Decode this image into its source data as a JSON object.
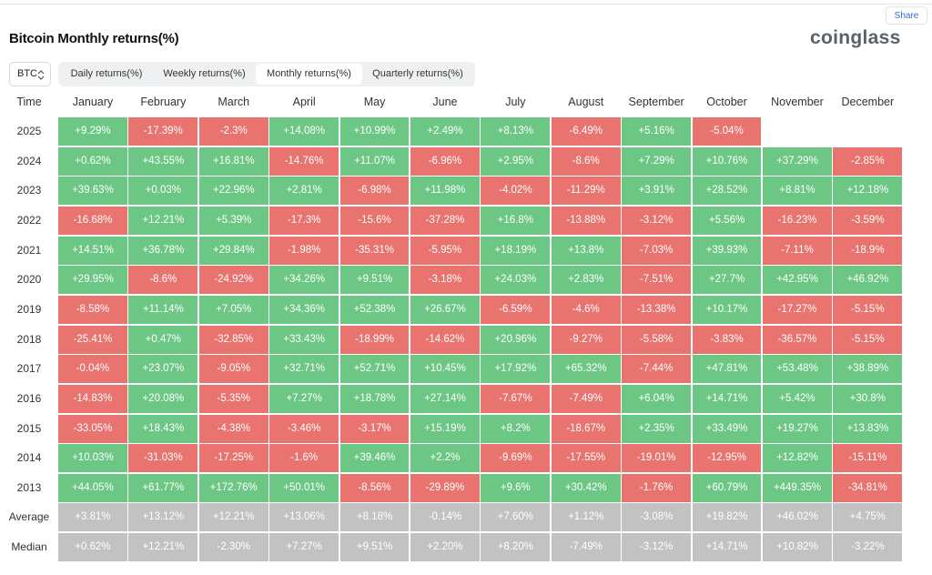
{
  "header": {
    "title": "Bitcoin Monthly returns(%)",
    "logo": "coinglass",
    "share": "Share"
  },
  "controls": {
    "asset": "BTC",
    "tabs": [
      "Daily returns(%)",
      "Weekly returns(%)",
      "Monthly returns(%)",
      "Quarterly returns(%)"
    ],
    "active_tab": 2
  },
  "colors": {
    "positive": "#6cc785",
    "negative": "#e8736f",
    "summary": "#c2c2c2"
  },
  "table": {
    "columns": [
      "Time",
      "January",
      "February",
      "March",
      "April",
      "May",
      "June",
      "July",
      "August",
      "September",
      "October",
      "November",
      "December"
    ],
    "rows": [
      {
        "label": "2025",
        "cells": [
          "+9.29%",
          "-17.39%",
          "-2.3%",
          "+14.08%",
          "+10.99%",
          "+2.49%",
          "+8.13%",
          "-6.49%",
          "+5.16%",
          "-5.04%"
        ]
      },
      {
        "label": "2024",
        "cells": [
          "+0.62%",
          "+43.55%",
          "+16.81%",
          "-14.76%",
          "+11.07%",
          "-6.96%",
          "+2.95%",
          "-8.6%",
          "+7.29%",
          "+10.76%",
          "+37.29%",
          "-2.85%"
        ]
      },
      {
        "label": "2023",
        "cells": [
          "+39.63%",
          "+0.03%",
          "+22.96%",
          "+2.81%",
          "-6.98%",
          "+11.98%",
          "-4.02%",
          "-11.29%",
          "+3.91%",
          "+28.52%",
          "+8.81%",
          "+12.18%"
        ]
      },
      {
        "label": "2022",
        "cells": [
          "-16.68%",
          "+12.21%",
          "+5.39%",
          "-17.3%",
          "-15.6%",
          "-37.28%",
          "+16.8%",
          "-13.88%",
          "-3.12%",
          "+5.56%",
          "-16.23%",
          "-3.59%"
        ]
      },
      {
        "label": "2021",
        "cells": [
          "+14.51%",
          "+36.78%",
          "+29.84%",
          "-1.98%",
          "-35.31%",
          "-5.95%",
          "+18.19%",
          "+13.8%",
          "-7.03%",
          "+39.93%",
          "-7.11%",
          "-18.9%"
        ]
      },
      {
        "label": "2020",
        "cells": [
          "+29.95%",
          "-8.6%",
          "-24.92%",
          "+34.26%",
          "+9.51%",
          "-3.18%",
          "+24.03%",
          "+2.83%",
          "-7.51%",
          "+27.7%",
          "+42.95%",
          "+46.92%"
        ]
      },
      {
        "label": "2019",
        "cells": [
          "-8.58%",
          "+11.14%",
          "+7.05%",
          "+34.36%",
          "+52.38%",
          "+26.67%",
          "-6.59%",
          "-4.6%",
          "-13.38%",
          "+10.17%",
          "-17.27%",
          "-5.15%"
        ]
      },
      {
        "label": "2018",
        "cells": [
          "-25.41%",
          "+0.47%",
          "-32.85%",
          "+33.43%",
          "-18.99%",
          "-14.62%",
          "+20.96%",
          "-9.27%",
          "-5.58%",
          "-3.83%",
          "-36.57%",
          "-5.15%"
        ]
      },
      {
        "label": "2017",
        "cells": [
          "-0.04%",
          "+23.07%",
          "-9.05%",
          "+32.71%",
          "+52.71%",
          "+10.45%",
          "+17.92%",
          "+65.32%",
          "-7.44%",
          "+47.81%",
          "+53.48%",
          "+38.89%"
        ]
      },
      {
        "label": "2016",
        "cells": [
          "-14.83%",
          "+20.08%",
          "-5.35%",
          "+7.27%",
          "+18.78%",
          "+27.14%",
          "-7.67%",
          "-7.49%",
          "+6.04%",
          "+14.71%",
          "+5.42%",
          "+30.8%"
        ]
      },
      {
        "label": "2015",
        "cells": [
          "-33.05%",
          "+18.43%",
          "-4.38%",
          "-3.46%",
          "-3.17%",
          "+15.19%",
          "+8.2%",
          "-18.67%",
          "+2.35%",
          "+33.49%",
          "+19.27%",
          "+13.83%"
        ]
      },
      {
        "label": "2014",
        "cells": [
          "+10.03%",
          "-31.03%",
          "-17.25%",
          "-1.6%",
          "+39.46%",
          "+2.2%",
          "-9.69%",
          "-17.55%",
          "-19.01%",
          "-12.95%",
          "+12.82%",
          "-15.11%"
        ]
      },
      {
        "label": "2013",
        "cells": [
          "+44.05%",
          "+61.77%",
          "+172.76%",
          "+50.01%",
          "-8.56%",
          "-29.89%",
          "+9.6%",
          "+30.42%",
          "-1.76%",
          "+60.79%",
          "+449.35%",
          "-34.81%"
        ]
      }
    ],
    "summary_rows": [
      {
        "label": "Average",
        "cells": [
          "+3.81%",
          "+13.12%",
          "+12.21%",
          "+13.06%",
          "+8.18%",
          "-0.14%",
          "+7.60%",
          "+1.12%",
          "-3.08%",
          "+19.82%",
          "+46.02%",
          "+4.75%"
        ]
      },
      {
        "label": "Median",
        "cells": [
          "+0.62%",
          "+12.21%",
          "-2.30%",
          "+7.27%",
          "+9.51%",
          "+2.20%",
          "+8.20%",
          "-7.49%",
          "-3.12%",
          "+14.71%",
          "+10.82%",
          "-3.22%"
        ]
      }
    ]
  }
}
